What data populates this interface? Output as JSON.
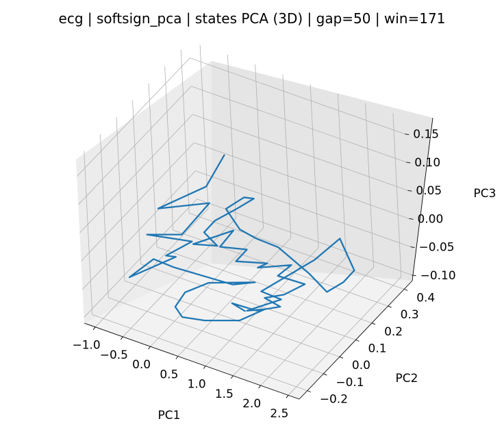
{
  "chart_data": {
    "type": "line",
    "projection": "3d",
    "title": "ecg | softsign_pca | states PCA (3D) | gap=50 | win=171",
    "xlabel": "PC1",
    "ylabel": "PC2",
    "zlabel": "PC3",
    "xticks": [
      "−1.0",
      "−0.5",
      "0.0",
      "0.5",
      "1.0",
      "1.5",
      "2.0",
      "2.5"
    ],
    "yticks": [
      "−0.2",
      "−0.1",
      "0.0",
      "0.1",
      "0.2",
      "0.3",
      "0.4"
    ],
    "zticks": [
      "−0.10",
      "−0.05",
      "0.00",
      "0.05",
      "0.10",
      "0.15"
    ],
    "xlim": [
      -1.2,
      2.7
    ],
    "ylim": [
      -0.25,
      0.45
    ],
    "zlim": [
      -0.11,
      0.18
    ],
    "grid": true,
    "series": [
      {
        "color": "#1f77b4",
        "points": [
          [
            0.6,
            0.05,
            0.16
          ],
          [
            0.3,
            0.03,
            0.1
          ],
          [
            -0.45,
            -0.02,
            0.05
          ],
          [
            0.25,
            0.06,
            0.06
          ],
          [
            -0.1,
            0.0,
            0.01
          ],
          [
            -0.65,
            -0.03,
            0.0
          ],
          [
            0.05,
            0.01,
            0.0
          ],
          [
            -0.35,
            -0.02,
            -0.03
          ],
          [
            -0.2,
            -0.01,
            -0.03
          ],
          [
            -0.95,
            -0.05,
            -0.08
          ],
          [
            -0.55,
            -0.03,
            -0.04
          ],
          [
            -0.25,
            -0.01,
            -0.05
          ],
          [
            0.7,
            0.03,
            -0.06
          ],
          [
            1.05,
            0.05,
            -0.05
          ],
          [
            0.35,
            0.0,
            -0.06
          ],
          [
            0.0,
            -0.03,
            -0.08
          ],
          [
            -0.1,
            -0.06,
            -0.1
          ],
          [
            0.05,
            -0.07,
            -0.11
          ],
          [
            0.4,
            -0.05,
            -0.11
          ],
          [
            0.95,
            -0.02,
            -0.1
          ],
          [
            1.3,
            0.02,
            -0.08
          ],
          [
            1.0,
            0.01,
            -0.09
          ],
          [
            1.55,
            0.04,
            -0.06
          ],
          [
            1.25,
            0.02,
            -0.05
          ],
          [
            1.95,
            0.12,
            0.0
          ],
          [
            2.25,
            0.18,
            0.03
          ],
          [
            2.55,
            0.16,
            -0.01
          ],
          [
            2.4,
            0.14,
            -0.03
          ],
          [
            2.15,
            0.12,
            -0.05
          ],
          [
            1.9,
            0.1,
            -0.02
          ],
          [
            1.45,
            0.07,
            0.02
          ],
          [
            1.1,
            0.05,
            0.03
          ],
          [
            0.85,
            0.04,
            0.04
          ],
          [
            0.55,
            0.06,
            0.06
          ],
          [
            0.8,
            0.09,
            0.08
          ],
          [
            0.95,
            0.1,
            0.08
          ],
          [
            0.7,
            0.08,
            0.06
          ],
          [
            0.4,
            0.04,
            0.04
          ],
          [
            0.25,
            0.02,
            0.02
          ],
          [
            0.45,
            0.03,
            0.0
          ],
          [
            0.1,
            0.0,
            0.0
          ],
          [
            0.7,
            0.05,
            0.03
          ],
          [
            0.5,
            0.03,
            0.0
          ],
          [
            0.9,
            0.06,
            0.0
          ],
          [
            0.75,
            0.04,
            -0.02
          ],
          [
            1.2,
            0.08,
            -0.02
          ],
          [
            1.05,
            0.07,
            -0.03
          ],
          [
            1.55,
            0.11,
            -0.02
          ],
          [
            1.35,
            0.09,
            -0.04
          ],
          [
            1.75,
            0.12,
            -0.05
          ],
          [
            1.45,
            0.09,
            -0.07
          ],
          [
            1.15,
            0.07,
            -0.08
          ],
          [
            1.4,
            0.08,
            -0.09
          ],
          [
            1.05,
            0.05,
            -0.1
          ],
          [
            0.7,
            0.02,
            -0.09
          ],
          [
            0.9,
            0.03,
            -0.1
          ]
        ]
      }
    ]
  }
}
